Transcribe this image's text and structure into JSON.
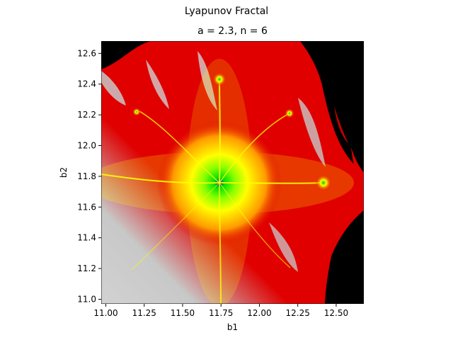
{
  "figure_title": "Lyapunov Fractal",
  "chart_data": {
    "type": "heatmap",
    "title": "a = 2.3, n = 6",
    "xlabel": "b1",
    "ylabel": "b2",
    "xlim": [
      10.97,
      12.68
    ],
    "ylim": [
      10.97,
      12.68
    ],
    "xticks": [
      11.0,
      11.25,
      11.5,
      11.75,
      12.0,
      12.25,
      12.5
    ],
    "xtick_labels": [
      "11.00",
      "11.25",
      "11.50",
      "11.75",
      "12.00",
      "12.25",
      "12.50"
    ],
    "yticks": [
      11.0,
      11.2,
      11.4,
      11.6,
      11.8,
      12.0,
      12.2,
      12.4,
      12.6
    ],
    "ytick_labels": [
      "11.0",
      "11.2",
      "11.4",
      "11.6",
      "11.8",
      "12.0",
      "12.2",
      "12.4",
      "12.6"
    ],
    "grid": false,
    "colors": {
      "stable_high": "#d2d2d2",
      "stable_mid": "#e00000",
      "near_zero": "#ffff00",
      "transition": "#00d000",
      "center": "#0000ff",
      "chaotic": "#000000"
    },
    "features": {
      "main_center": [
        11.75,
        11.75
      ],
      "secondary_points": [
        [
          11.75,
          12.42
        ],
        [
          12.43,
          11.75
        ],
        [
          12.2,
          12.21
        ],
        [
          11.2,
          12.22
        ]
      ]
    }
  }
}
